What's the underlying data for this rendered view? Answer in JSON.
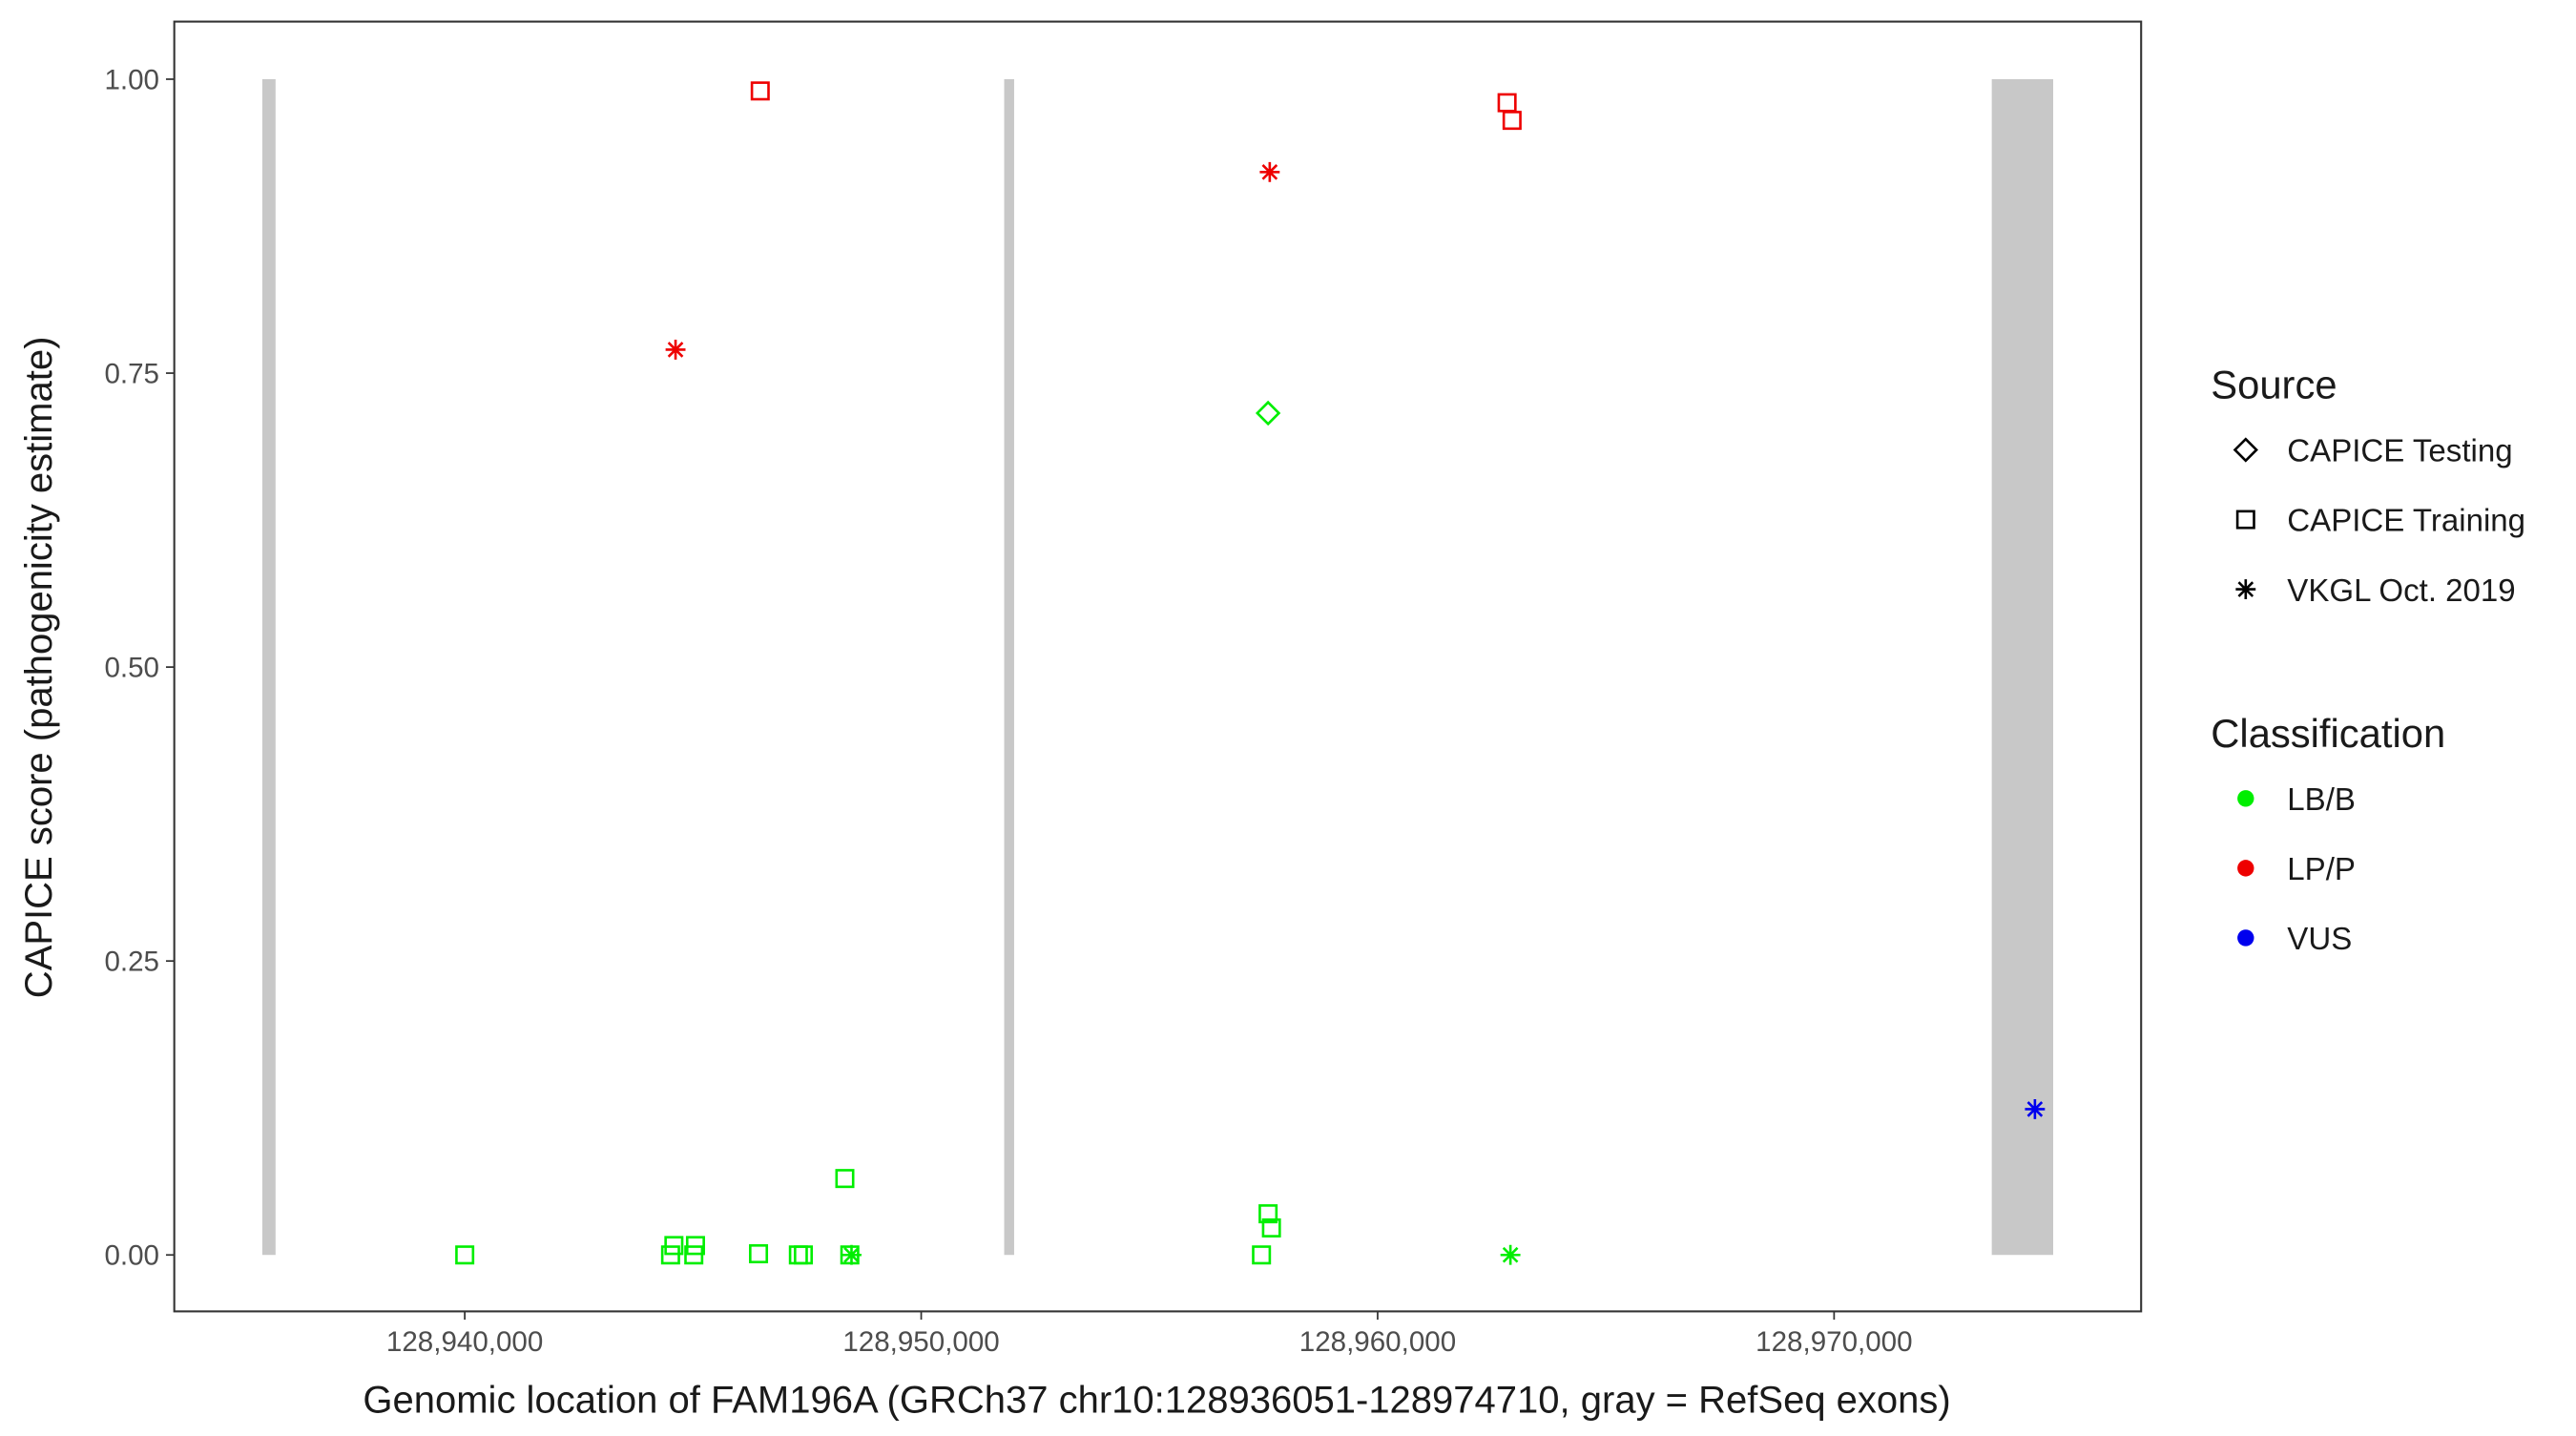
{
  "chart_data": {
    "type": "scatter",
    "x_label": "Genomic location of FAM196A (GRCh37 chr10:128936051-128974710, gray = RefSeq exons)",
    "y_label": "CAPICE score (pathogenicity estimate)",
    "xlim": [
      128933636,
      128976727
    ],
    "ylim": [
      -0.048,
      1.049
    ],
    "xticks": [
      {
        "value": 128940000,
        "label": "128,940,000"
      },
      {
        "value": 128950000,
        "label": "128,950,000"
      },
      {
        "value": 128960000,
        "label": "128,960,000"
      },
      {
        "value": 128970000,
        "label": "128,970,000"
      }
    ],
    "yticks": [
      {
        "value": 0,
        "label": "0.00"
      },
      {
        "value": 0.25,
        "label": "0.25"
      },
      {
        "value": 0.5,
        "label": "0.50"
      },
      {
        "value": 0.75,
        "label": "0.75"
      },
      {
        "value": 1,
        "label": "1.00"
      }
    ],
    "grid": false,
    "exon_color": "#c8c8c8",
    "exons": [
      {
        "start": 128935564,
        "end": 128935855,
        "score": 1
      },
      {
        "start": 128951818,
        "end": 128952036,
        "score": 1
      },
      {
        "start": 128973455,
        "end": 128974800,
        "score": 1
      }
    ],
    "source_legend": {
      "title": "Source",
      "entries": [
        {
          "name": "CAPICE Testing",
          "shape": "diamond"
        },
        {
          "name": "CAPICE Training",
          "shape": "square"
        },
        {
          "name": "VKGL Oct. 2019",
          "shape": "star"
        }
      ]
    },
    "legend_title": "Classification",
    "legend_position": "right",
    "series": [
      {
        "name": "LB/B",
        "color": "#00ee00",
        "x": [
          128957600,
          128940000,
          128944509,
          128944582,
          128945018,
          128945055,
          128946436,
          128947309,
          128947418,
          128948327,
          128948436,
          128957455,
          128957600,
          128957673,
          128948473,
          128962909
        ],
        "values": [
          0.716,
          0,
          0,
          0.008,
          0,
          0.008,
          0.001,
          0,
          0,
          0.065,
          0,
          0,
          0.035,
          0.023,
          0,
          0
        ],
        "source": [
          "CAPICE Testing",
          "CAPICE Training",
          "CAPICE Training",
          "CAPICE Training",
          "CAPICE Training",
          "CAPICE Training",
          "CAPICE Training",
          "CAPICE Training",
          "CAPICE Training",
          "CAPICE Training",
          "CAPICE Training",
          "CAPICE Training",
          "CAPICE Training",
          "CAPICE Training",
          "VKGL Oct. 2019",
          "VKGL Oct. 2019"
        ]
      },
      {
        "name": "LP/P",
        "color": "#ee0000",
        "x": [
          128946473,
          128962836,
          128962945,
          128944618,
          128957636
        ],
        "values": [
          0.99,
          0.98,
          0.965,
          0.77,
          0.921
        ],
        "source": [
          "CAPICE Training",
          "CAPICE Training",
          "CAPICE Training",
          "VKGL Oct. 2019",
          "VKGL Oct. 2019"
        ]
      },
      {
        "name": "VUS",
        "color": "#0000ee",
        "x": [
          128974400
        ],
        "values": [
          0.124
        ],
        "source": [
          "VKGL Oct. 2019"
        ]
      }
    ]
  }
}
